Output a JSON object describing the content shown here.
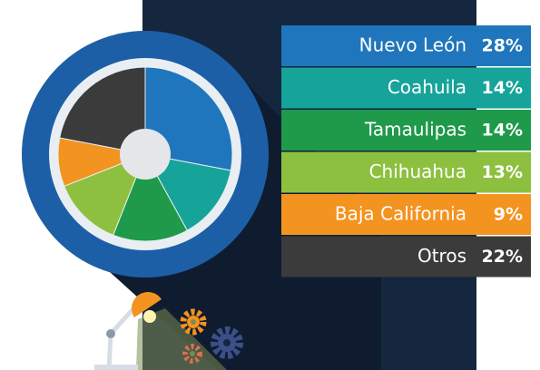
{
  "chart_data": {
    "type": "pie",
    "categories": [
      "Nuevo León",
      "Coahuila",
      "Tamaulipas",
      "Chihuahua",
      "Baja California",
      "Otros"
    ],
    "values": [
      28,
      14,
      14,
      13,
      9,
      22
    ],
    "value_labels": [
      "28%",
      "14%",
      "14%",
      "13%",
      "9%",
      "22%"
    ],
    "colors": [
      "#1f76bc",
      "#16a39a",
      "#1e9a4a",
      "#8dc03f",
      "#f39320",
      "#3b3b3b"
    ]
  }
}
